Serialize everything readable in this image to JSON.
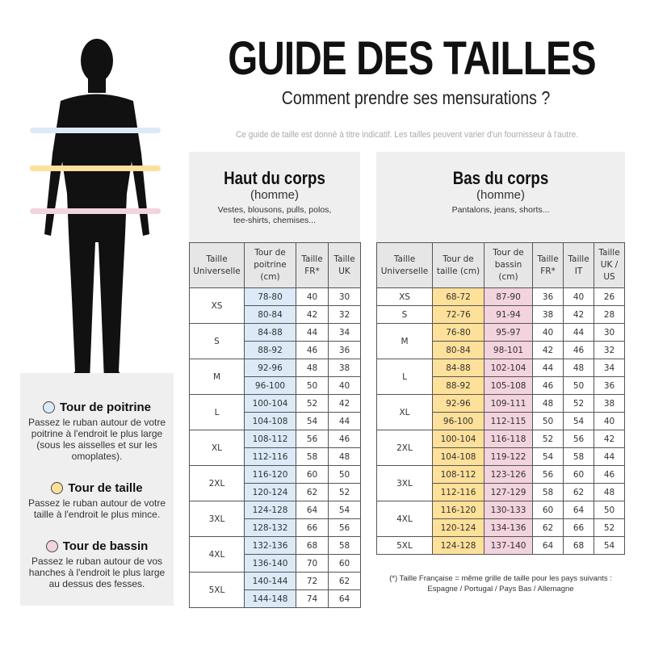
{
  "header": {
    "title": "GUIDE DES TAILLES",
    "subtitle": "Comment prendre ses mensurations ?",
    "disclaimer": "Ce guide de taille est donné à titre indicatif. Les tailles peuvent varier d'un fournisseur à l'autre."
  },
  "colors": {
    "chest": "#dbeaf6",
    "waist": "#fde09a",
    "hips": "#f2d3de"
  },
  "measurements": [
    {
      "title": "Tour de poitrine",
      "desc": "Passez le ruban autour de votre poitrine à l'endroit le plus large (sous les aisselles et sur les omoplates).",
      "color": "#dbeaf6"
    },
    {
      "title": "Tour de taille",
      "desc": "Passez le ruban autour de votre taille à l'endroit le plus mince.",
      "color": "#fde09a"
    },
    {
      "title": "Tour de bassin",
      "desc": "Passez le ruban autour de vos hanches à l'endroit le plus large au dessus des fesses.",
      "color": "#f2d3de"
    }
  ],
  "top": {
    "title": "Haut du corps",
    "sub": "(homme)",
    "desc": "Vestes, blousons, pulls, polos, tee-shirts, chemises...",
    "columns": [
      "Taille Universelle",
      "Tour de poitrine (cm)",
      "Taille FR*",
      "Taille UK"
    ],
    "groups": [
      {
        "size": "XS",
        "rows": [
          [
            "78-80",
            "40",
            "30"
          ],
          [
            "80-84",
            "42",
            "32"
          ]
        ]
      },
      {
        "size": "S",
        "rows": [
          [
            "84-88",
            "44",
            "34"
          ],
          [
            "88-92",
            "46",
            "36"
          ]
        ]
      },
      {
        "size": "M",
        "rows": [
          [
            "92-96",
            "48",
            "38"
          ],
          [
            "96-100",
            "50",
            "40"
          ]
        ]
      },
      {
        "size": "L",
        "rows": [
          [
            "100-104",
            "52",
            "42"
          ],
          [
            "104-108",
            "54",
            "44"
          ]
        ]
      },
      {
        "size": "XL",
        "rows": [
          [
            "108-112",
            "56",
            "46"
          ],
          [
            "112-116",
            "58",
            "48"
          ]
        ]
      },
      {
        "size": "2XL",
        "rows": [
          [
            "116-120",
            "60",
            "50"
          ],
          [
            "120-124",
            "62",
            "52"
          ]
        ]
      },
      {
        "size": "3XL",
        "rows": [
          [
            "124-128",
            "64",
            "54"
          ],
          [
            "128-132",
            "66",
            "56"
          ]
        ]
      },
      {
        "size": "4XL",
        "rows": [
          [
            "132-136",
            "68",
            "58"
          ],
          [
            "136-140",
            "70",
            "60"
          ]
        ]
      },
      {
        "size": "5XL",
        "rows": [
          [
            "140-144",
            "72",
            "62"
          ],
          [
            "144-148",
            "74",
            "64"
          ]
        ]
      }
    ]
  },
  "bottom": {
    "title": "Bas du corps",
    "sub": "(homme)",
    "desc": "Pantalons, jeans, shorts...",
    "columns": [
      "Taille Universelle",
      "Tour de taille (cm)",
      "Tour de bassin (cm)",
      "Taille FR*",
      "Taille IT",
      "Taille UK / US"
    ],
    "groups": [
      {
        "size": "XS",
        "rows": [
          [
            "68-72",
            "87-90",
            "36",
            "40",
            "26"
          ]
        ]
      },
      {
        "size": "S",
        "rows": [
          [
            "72-76",
            "91-94",
            "38",
            "42",
            "28"
          ]
        ]
      },
      {
        "size": "M",
        "rows": [
          [
            "76-80",
            "95-97",
            "40",
            "44",
            "30"
          ],
          [
            "80-84",
            "98-101",
            "42",
            "46",
            "32"
          ]
        ]
      },
      {
        "size": "L",
        "rows": [
          [
            "84-88",
            "102-104",
            "44",
            "48",
            "34"
          ],
          [
            "88-92",
            "105-108",
            "46",
            "50",
            "36"
          ]
        ]
      },
      {
        "size": "XL",
        "rows": [
          [
            "92-96",
            "109-111",
            "48",
            "52",
            "38"
          ],
          [
            "96-100",
            "112-115",
            "50",
            "54",
            "40"
          ]
        ]
      },
      {
        "size": "2XL",
        "rows": [
          [
            "100-104",
            "116-118",
            "52",
            "56",
            "42"
          ],
          [
            "104-108",
            "119-122",
            "54",
            "58",
            "44"
          ]
        ]
      },
      {
        "size": "3XL",
        "rows": [
          [
            "108-112",
            "123-126",
            "56",
            "60",
            "46"
          ],
          [
            "112-116",
            "127-129",
            "58",
            "62",
            "48"
          ]
        ]
      },
      {
        "size": "4XL",
        "rows": [
          [
            "116-120",
            "130-133",
            "60",
            "64",
            "50"
          ],
          [
            "120-124",
            "134-136",
            "62",
            "66",
            "52"
          ]
        ]
      },
      {
        "size": "5XL",
        "rows": [
          [
            "124-128",
            "137-140",
            "64",
            "68",
            "54"
          ]
        ]
      }
    ]
  },
  "footnote": "(*) Taille Française = même grille de taille pour les pays suivants : Espagne / Portugal / Pays Bas / Allemagne"
}
